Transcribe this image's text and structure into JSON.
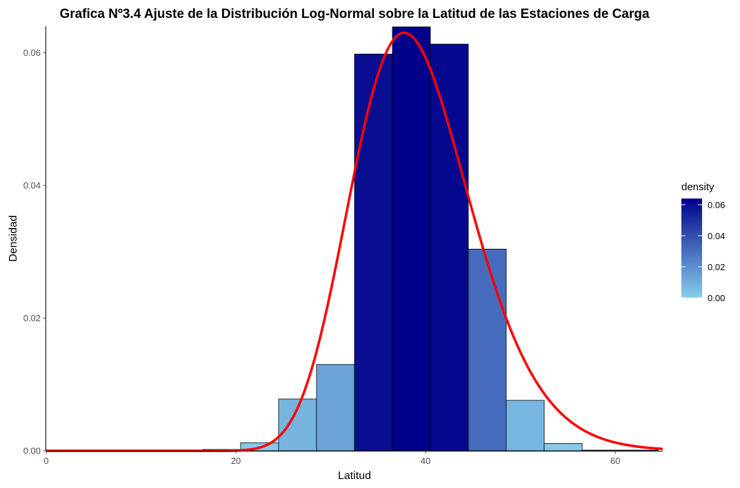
{
  "chart_data": {
    "type": "bar",
    "subtype": "histogram_with_density_curve",
    "title": "Grafica Nº3.4 Ajuste de la Distribución Log-Normal sobre la Latitud de las Estaciones de Carga",
    "xlabel": "Latitud",
    "ylabel": "Densidad",
    "xlim": [
      0,
      65
    ],
    "ylim": [
      0,
      0.064
    ],
    "x_ticks": [
      0,
      20,
      40,
      60
    ],
    "x_tick_labels": [
      "0",
      "20",
      "40",
      "60"
    ],
    "y_ticks": [
      0,
      0.02,
      0.04,
      0.06
    ],
    "y_tick_labels": [
      "0.00",
      "0.02",
      "0.04",
      "0.06"
    ],
    "grid": false,
    "bins": [
      {
        "x0": 16.5,
        "x1": 20.5,
        "density": 0.0002
      },
      {
        "x0": 20.5,
        "x1": 24.5,
        "density": 0.0012
      },
      {
        "x0": 24.5,
        "x1": 28.5,
        "density": 0.0078
      },
      {
        "x0": 28.5,
        "x1": 32.5,
        "density": 0.013
      },
      {
        "x0": 32.5,
        "x1": 36.5,
        "density": 0.0598
      },
      {
        "x0": 36.5,
        "x1": 40.5,
        "density": 0.0639
      },
      {
        "x0": 40.5,
        "x1": 44.5,
        "density": 0.0613
      },
      {
        "x0": 44.5,
        "x1": 48.5,
        "density": 0.0304
      },
      {
        "x0": 48.5,
        "x1": 52.5,
        "density": 0.0076
      },
      {
        "x0": 52.5,
        "x1": 56.5,
        "density": 0.0011
      },
      {
        "x0": 56.5,
        "x1": 60.5,
        "density": 0.0001
      },
      {
        "x0": 60.5,
        "x1": 64.5,
        "density": 0.0001
      }
    ],
    "curve": {
      "distribution": "lognormal",
      "meanlog": 3.658,
      "sdlog": 0.1655,
      "color": "#ff0000"
    },
    "fill_scale": {
      "low": "#87ceeb",
      "high": "#00008b",
      "limits": [
        0,
        0.064
      ]
    },
    "legend": {
      "title": "density",
      "position": "right",
      "ticks": [
        0,
        0.02,
        0.04,
        0.06
      ],
      "tick_labels": [
        "0.00",
        "0.02",
        "0.04",
        "0.06"
      ]
    }
  }
}
